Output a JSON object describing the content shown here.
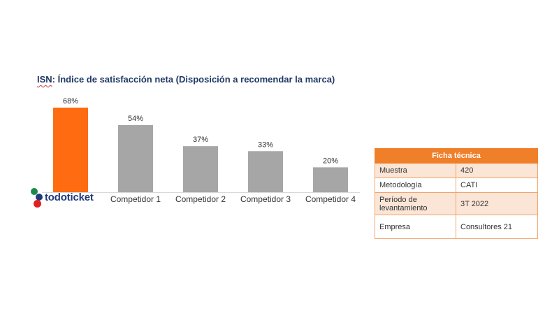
{
  "chart_data": {
    "type": "bar",
    "title_prefix": "ISN",
    "title_rest": ": Índice de satisfacción neta (Disposición a recomendar la marca)",
    "categories": [
      "todoticket",
      "Competidor 1",
      "Competidor 2",
      "Competidor 3",
      "Competidor 4"
    ],
    "values": [
      68,
      54,
      37,
      33,
      20
    ],
    "data_labels": [
      "68%",
      "54%",
      "37%",
      "33%",
      "20%"
    ],
    "unit": "%",
    "ylim": [
      0,
      68
    ],
    "grid": false,
    "colors": {
      "highlight": "#ff6b10",
      "bar": "#a6a6a6",
      "axis": "#d9d9d9"
    }
  },
  "logo": {
    "text": "todoticket"
  },
  "ficha": {
    "header": "Ficha técnica",
    "rows": [
      {
        "key": "Muestra",
        "value": "420"
      },
      {
        "key": "Metodología",
        "value": "CATI"
      },
      {
        "key": "Período de levantamiento",
        "value": "3T 2022"
      },
      {
        "key": "Empresa",
        "value": "Consultores 21"
      }
    ]
  }
}
